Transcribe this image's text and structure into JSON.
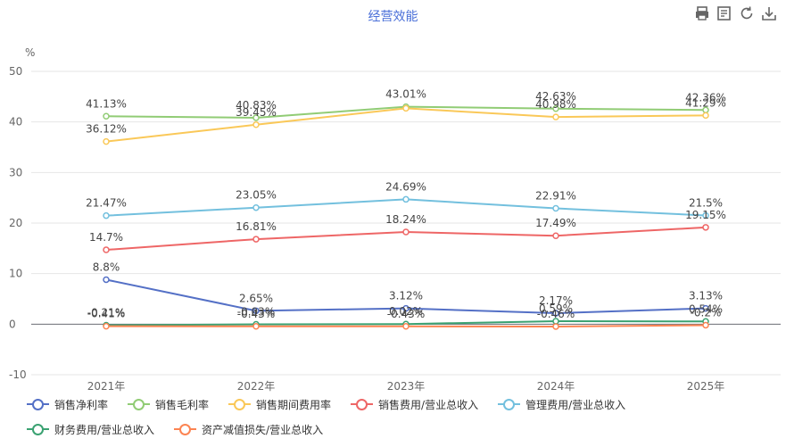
{
  "header": {
    "title": "经营效能"
  },
  "toolbar": {
    "icons": [
      "print-icon",
      "data-view-icon",
      "refresh-icon",
      "download-icon"
    ]
  },
  "chart_data": {
    "type": "line",
    "title": "经营效能",
    "ylabel": "%",
    "xlabel": "",
    "ylim": [
      -10,
      50
    ],
    "yticks": [
      -10,
      0,
      10,
      20,
      30,
      40,
      50
    ],
    "categories": [
      "2021年",
      "2022年",
      "2023年",
      "2024年",
      "2025年"
    ],
    "grid": true,
    "legend_position": "bottom",
    "series": [
      {
        "name": "销售净利率",
        "color": "#5470c6",
        "values": [
          8.8,
          2.65,
          3.12,
          2.17,
          3.13
        ],
        "labels": [
          "8.8%",
          "2.65%",
          "3.12%",
          "2.17%",
          "3.13%"
        ]
      },
      {
        "name": "销售毛利率",
        "color": "#91cc75",
        "values": [
          41.13,
          40.83,
          43.01,
          42.63,
          42.36
        ],
        "labels": [
          "41.13%",
          "40.83%",
          "43.01%",
          "42.63%",
          "42.36%"
        ]
      },
      {
        "name": "销售期间费用率",
        "color": "#fac858",
        "values": [
          36.12,
          39.45,
          42.7,
          40.98,
          41.29
        ],
        "labels": [
          "36.12%",
          "39.45%",
          "",
          "40.98%",
          "41.29%"
        ]
      },
      {
        "name": "销售费用/营业总收入",
        "color": "#ee6666",
        "values": [
          14.7,
          16.81,
          18.24,
          17.49,
          19.15
        ],
        "labels": [
          "14.7%",
          "16.81%",
          "18.24%",
          "17.49%",
          "19.15%"
        ]
      },
      {
        "name": "管理费用/营业总收入",
        "color": "#73c0de",
        "values": [
          21.47,
          23.05,
          24.69,
          22.91,
          21.5
        ],
        "labels": [
          "21.47%",
          "23.05%",
          "24.69%",
          "22.91%",
          "21.5%"
        ]
      },
      {
        "name": "财务费用/营业总收入",
        "color": "#3ba272",
        "values": [
          -0.21,
          -0.03,
          0.02,
          0.59,
          0.54
        ],
        "labels": [
          "-0.21%",
          "-0.03%",
          "0.02%",
          "0.59%",
          "0.54%"
        ]
      },
      {
        "name": "资产减值损失/营业总收入",
        "color": "#fc8452",
        "values": [
          -0.41,
          -0.43,
          -0.43,
          -0.46,
          -0.2
        ],
        "labels": [
          "-0.41%",
          "-0.43%",
          "-0.43%",
          "-0.46%",
          "-0.2%"
        ]
      }
    ]
  }
}
